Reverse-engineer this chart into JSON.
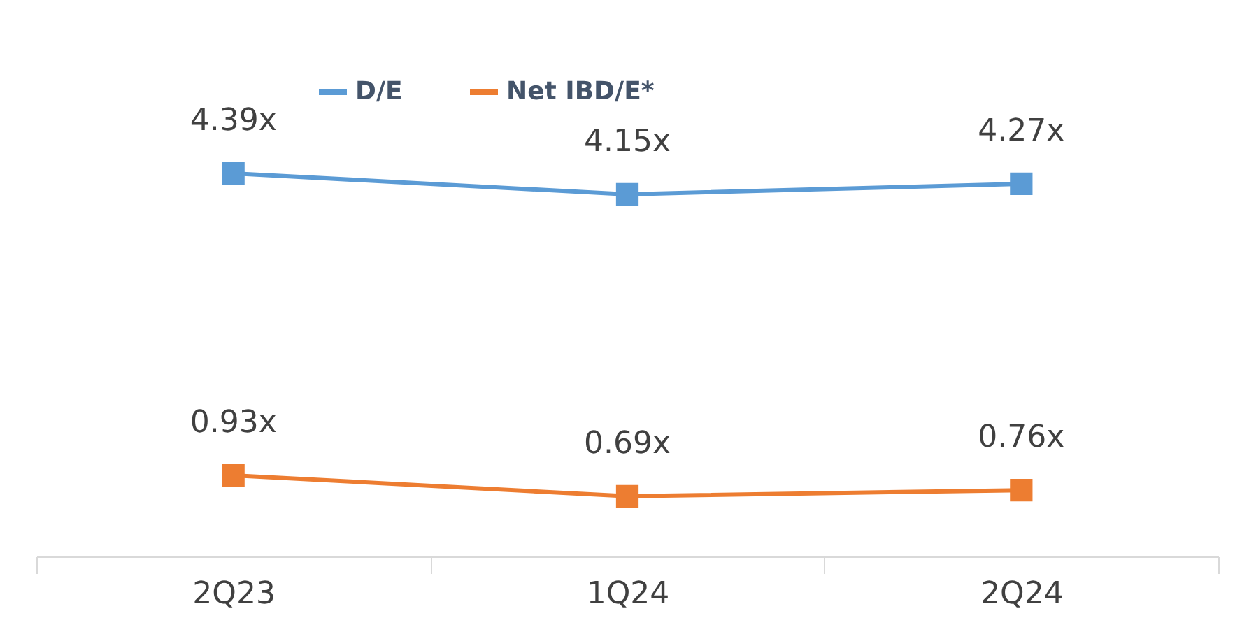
{
  "chart_data": {
    "type": "line",
    "categories": [
      "2Q23",
      "1Q24",
      "2Q24"
    ],
    "series": [
      {
        "name": "D/E",
        "color": "#5b9bd5",
        "values": [
          4.39,
          4.15,
          4.27
        ],
        "value_labels": [
          "4.39x",
          "4.15x",
          "4.27x"
        ]
      },
      {
        "name": "Net IBD/E*",
        "color": "#ed7d31",
        "values": [
          0.93,
          0.69,
          0.76
        ],
        "value_labels": [
          "0.93x",
          "0.69x",
          "0.76x"
        ]
      }
    ],
    "tick_labels": "x",
    "grid": false,
    "legend": "top",
    "marker": "square",
    "line_style": "solid"
  }
}
